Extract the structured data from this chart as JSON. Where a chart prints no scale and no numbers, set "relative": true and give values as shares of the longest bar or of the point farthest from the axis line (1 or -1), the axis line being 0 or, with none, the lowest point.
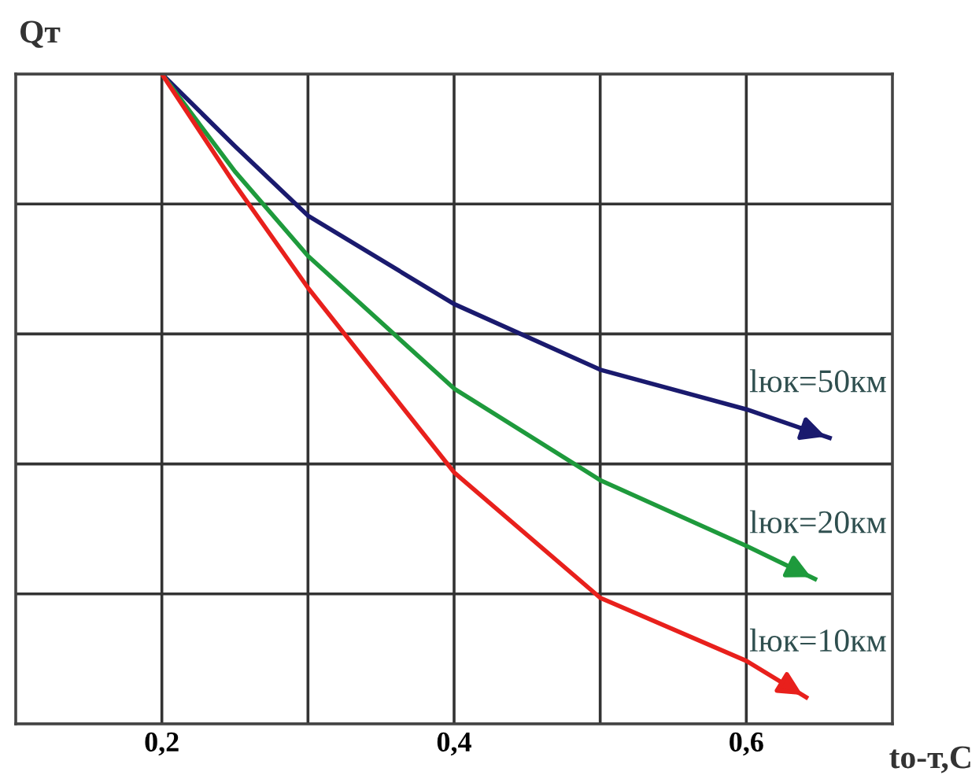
{
  "chart_data": {
    "type": "line",
    "relative": true,
    "ylabel": "Qт",
    "xlabel": "tо-т,С",
    "xlim": [
      0.1,
      0.7
    ],
    "xticks": [
      {
        "value": 0.2,
        "label": "0,2"
      },
      {
        "value": 0.3,
        "label": null
      },
      {
        "value": 0.4,
        "label": "0,4"
      },
      {
        "value": 0.5,
        "label": null
      },
      {
        "value": 0.6,
        "label": "0,6"
      }
    ],
    "grid": true,
    "legend": false,
    "marker": "none",
    "line_style": "solid",
    "series": [
      {
        "name": "lюк=50км",
        "color": "#1a1a6e",
        "x": [
          0.2,
          0.25,
          0.3,
          0.4,
          0.5,
          0.6,
          0.657
        ],
        "values": [
          1,
          0.889,
          0.782,
          0.646,
          0.545,
          0.484,
          0.44
        ]
      },
      {
        "name": "lюк=20км",
        "color": "#1e9a3c",
        "x": [
          0.2,
          0.25,
          0.3,
          0.4,
          0.5,
          0.6,
          0.647
        ],
        "values": [
          1,
          0.85,
          0.72,
          0.516,
          0.375,
          0.274,
          0.223
        ]
      },
      {
        "name": "lюк=10км",
        "color": "#e8201c",
        "x": [
          0.2,
          0.25,
          0.3,
          0.4,
          0.5,
          0.6,
          0.641
        ],
        "values": [
          1,
          0.83,
          0.671,
          0.387,
          0.194,
          0.097,
          0.041
        ]
      }
    ]
  }
}
